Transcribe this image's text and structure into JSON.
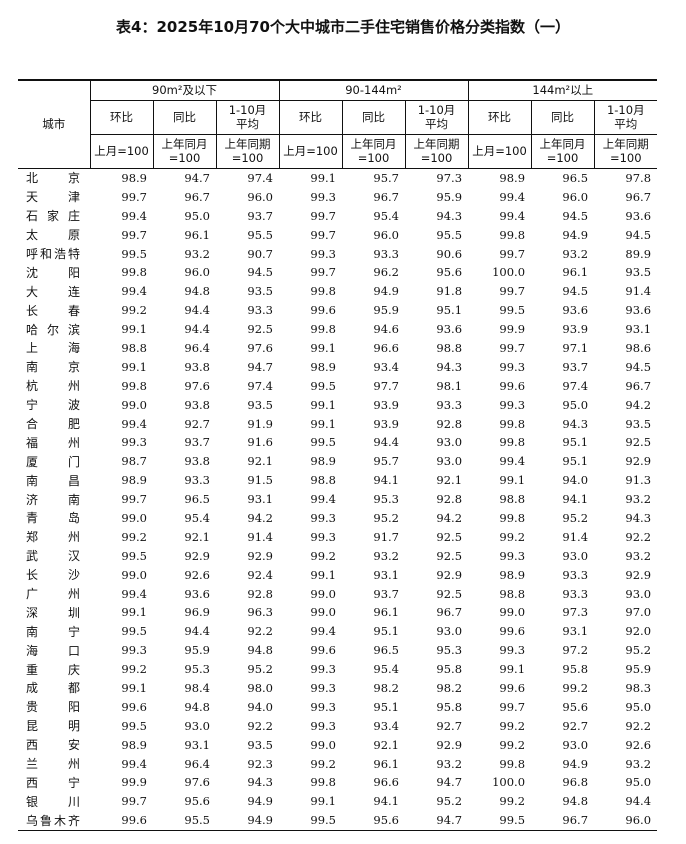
{
  "title": "表4：2025年10月70个大中城市二手住宅销售价格分类指数（一）",
  "header": {
    "city": "城市",
    "groups": [
      "90m²及以下",
      "90-144m²",
      "144m²以上"
    ],
    "sub": [
      [
        "环比"
      ],
      [
        "同比"
      ],
      [
        "1-10月",
        "平均"
      ]
    ],
    "base": [
      [
        "上月=100"
      ],
      [
        "上年同月",
        "=100"
      ],
      [
        "上年同期",
        "=100"
      ]
    ]
  },
  "table": {
    "rows": [
      {
        "city": "北京",
        "values": [
          "98.9",
          "94.7",
          "97.4",
          "99.1",
          "95.7",
          "97.3",
          "98.9",
          "96.5",
          "97.8"
        ]
      },
      {
        "city": "天津",
        "values": [
          "99.7",
          "96.7",
          "96.0",
          "99.3",
          "96.7",
          "95.9",
          "99.4",
          "96.0",
          "96.7"
        ]
      },
      {
        "city": "石家庄",
        "values": [
          "99.4",
          "95.0",
          "93.7",
          "99.7",
          "95.4",
          "94.3",
          "99.4",
          "94.5",
          "93.6"
        ]
      },
      {
        "city": "太原",
        "values": [
          "99.7",
          "96.1",
          "95.5",
          "99.7",
          "96.0",
          "95.5",
          "99.8",
          "94.9",
          "94.5"
        ]
      },
      {
        "city": "呼和浩特",
        "values": [
          "99.5",
          "93.2",
          "90.7",
          "99.3",
          "93.3",
          "90.6",
          "99.7",
          "93.2",
          "89.9"
        ]
      },
      {
        "city": "沈阳",
        "values": [
          "99.8",
          "96.0",
          "94.5",
          "99.7",
          "96.2",
          "95.6",
          "100.0",
          "96.1",
          "93.5"
        ]
      },
      {
        "city": "大连",
        "values": [
          "99.4",
          "94.8",
          "93.5",
          "99.8",
          "94.9",
          "91.8",
          "99.7",
          "94.5",
          "91.4"
        ]
      },
      {
        "city": "长春",
        "values": [
          "99.2",
          "94.4",
          "93.3",
          "99.6",
          "95.9",
          "95.1",
          "99.5",
          "93.6",
          "93.6"
        ]
      },
      {
        "city": "哈尔滨",
        "values": [
          "99.1",
          "94.4",
          "92.5",
          "99.8",
          "94.6",
          "93.6",
          "99.9",
          "93.9",
          "93.1"
        ]
      },
      {
        "city": "上海",
        "values": [
          "98.8",
          "96.4",
          "97.6",
          "99.1",
          "96.6",
          "98.8",
          "99.7",
          "97.1",
          "98.6"
        ]
      },
      {
        "city": "南京",
        "values": [
          "99.1",
          "93.8",
          "94.7",
          "98.9",
          "93.4",
          "94.3",
          "99.3",
          "93.7",
          "94.5"
        ]
      },
      {
        "city": "杭州",
        "values": [
          "99.8",
          "97.6",
          "97.4",
          "99.5",
          "97.7",
          "98.1",
          "99.6",
          "97.4",
          "96.7"
        ]
      },
      {
        "city": "宁波",
        "values": [
          "99.0",
          "93.8",
          "93.5",
          "99.1",
          "93.9",
          "93.3",
          "99.3",
          "95.0",
          "94.2"
        ]
      },
      {
        "city": "合肥",
        "values": [
          "99.4",
          "92.7",
          "91.9",
          "99.1",
          "93.9",
          "92.8",
          "99.8",
          "94.3",
          "93.5"
        ]
      },
      {
        "city": "福州",
        "values": [
          "99.3",
          "93.7",
          "91.6",
          "99.5",
          "94.4",
          "93.0",
          "99.8",
          "95.1",
          "92.5"
        ]
      },
      {
        "city": "厦门",
        "values": [
          "98.7",
          "93.8",
          "92.1",
          "98.9",
          "95.7",
          "93.0",
          "99.4",
          "95.1",
          "92.9"
        ]
      },
      {
        "city": "南昌",
        "values": [
          "98.9",
          "93.3",
          "91.5",
          "98.8",
          "94.1",
          "92.1",
          "99.1",
          "94.0",
          "91.3"
        ]
      },
      {
        "city": "济南",
        "values": [
          "99.7",
          "96.5",
          "93.1",
          "99.4",
          "95.3",
          "92.8",
          "98.8",
          "94.1",
          "93.2"
        ]
      },
      {
        "city": "青岛",
        "values": [
          "99.0",
          "95.4",
          "94.2",
          "99.3",
          "95.2",
          "94.2",
          "99.8",
          "95.2",
          "94.3"
        ]
      },
      {
        "city": "郑州",
        "values": [
          "99.2",
          "92.1",
          "91.4",
          "99.3",
          "91.7",
          "92.5",
          "99.2",
          "91.4",
          "92.2"
        ]
      },
      {
        "city": "武汉",
        "values": [
          "99.5",
          "92.9",
          "92.9",
          "99.2",
          "93.2",
          "92.5",
          "99.3",
          "93.0",
          "93.2"
        ]
      },
      {
        "city": "长沙",
        "values": [
          "99.0",
          "92.6",
          "92.4",
          "99.1",
          "93.1",
          "92.9",
          "98.9",
          "93.3",
          "92.9"
        ]
      },
      {
        "city": "广州",
        "values": [
          "99.4",
          "93.6",
          "92.8",
          "99.0",
          "93.7",
          "92.5",
          "98.8",
          "93.3",
          "93.0"
        ]
      },
      {
        "city": "深圳",
        "values": [
          "99.1",
          "96.9",
          "96.3",
          "99.0",
          "96.1",
          "96.7",
          "99.0",
          "97.3",
          "97.0"
        ]
      },
      {
        "city": "南宁",
        "values": [
          "99.5",
          "94.4",
          "92.2",
          "99.4",
          "95.1",
          "93.0",
          "99.6",
          "93.1",
          "92.0"
        ]
      },
      {
        "city": "海口",
        "values": [
          "99.3",
          "95.9",
          "94.8",
          "99.6",
          "96.5",
          "95.3",
          "99.3",
          "97.2",
          "95.2"
        ]
      },
      {
        "city": "重庆",
        "values": [
          "99.2",
          "95.3",
          "95.2",
          "99.3",
          "95.4",
          "95.8",
          "99.1",
          "95.8",
          "95.9"
        ]
      },
      {
        "city": "成都",
        "values": [
          "99.1",
          "98.4",
          "98.0",
          "99.3",
          "98.2",
          "98.2",
          "99.6",
          "99.2",
          "98.3"
        ]
      },
      {
        "city": "贵阳",
        "values": [
          "99.6",
          "94.8",
          "94.0",
          "99.3",
          "95.1",
          "95.8",
          "99.7",
          "95.6",
          "95.0"
        ]
      },
      {
        "city": "昆明",
        "values": [
          "99.5",
          "93.0",
          "92.2",
          "99.3",
          "93.4",
          "92.7",
          "99.2",
          "92.7",
          "92.2"
        ]
      },
      {
        "city": "西安",
        "values": [
          "98.9",
          "93.1",
          "93.5",
          "99.0",
          "92.1",
          "92.9",
          "99.2",
          "93.0",
          "92.6"
        ]
      },
      {
        "city": "兰州",
        "values": [
          "99.4",
          "96.4",
          "92.3",
          "99.2",
          "96.1",
          "93.2",
          "99.8",
          "94.9",
          "93.2"
        ]
      },
      {
        "city": "西宁",
        "values": [
          "99.9",
          "97.6",
          "94.3",
          "99.8",
          "96.6",
          "94.7",
          "100.0",
          "96.8",
          "95.0"
        ]
      },
      {
        "city": "银川",
        "values": [
          "99.7",
          "95.6",
          "94.9",
          "99.1",
          "94.1",
          "95.2",
          "99.2",
          "94.8",
          "94.4"
        ]
      },
      {
        "city": "乌鲁木齐",
        "values": [
          "99.6",
          "95.5",
          "94.9",
          "99.5",
          "95.6",
          "94.7",
          "99.5",
          "96.7",
          "96.0"
        ]
      }
    ]
  }
}
